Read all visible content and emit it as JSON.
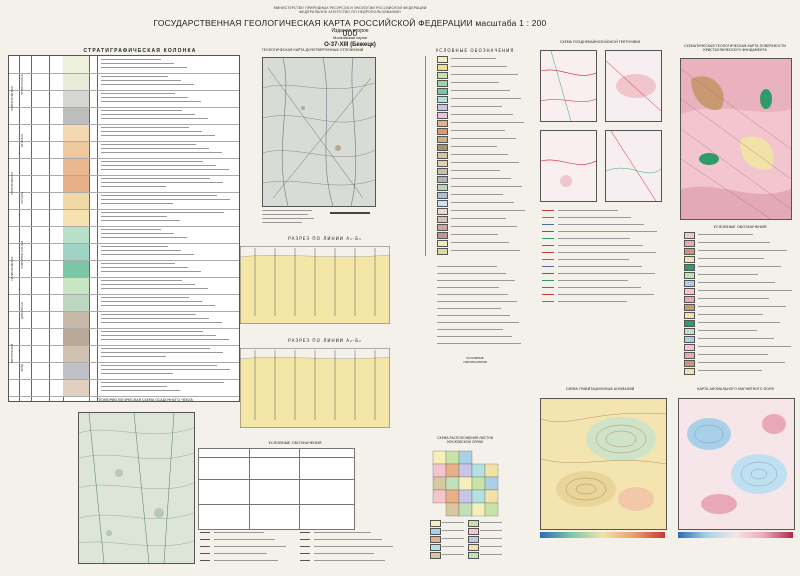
{
  "header": {
    "org_line1": "МИНИСТЕРСТВО ПРИРОДНЫХ РЕСУРСОВ И ЭКОЛОГИИ РОССИЙСКОЙ ФЕДЕРАЦИИ",
    "org_line2": "ФЕДЕРАЛЬНОЕ АГЕНТСТВО ПО НЕДРОПОЛЬЗОВАНИЮ",
    "title": "ГОСУДАРСТВЕННАЯ ГЕОЛОГИЧЕСКАЯ КАРТА РОССИЙСКОЙ ФЕДЕРАЦИИ масштаба 1 : 200 000",
    "edition": "Издание второе",
    "series": "Московская серия",
    "sheet": "О-37-XIII (Бежецк)"
  },
  "panels": {
    "stratigraphic_column": "СТРАТИГРАФИЧЕСКАЯ КОЛОНКА",
    "geologic_map_prequaternary": "ГЕОЛОГИЧЕСКАЯ КАРТА ДОЧЕТВЕРТИЧНЫХ ОТЛОЖЕНИЙ",
    "legend_main": "УСЛОВНЫЕ ОБОЗНАЧЕНИЯ",
    "section_1": "РАЗРЕЗ ПО ЛИНИИ А₁-Б₁",
    "section_2": "РАЗРЕЗ ПО ЛИНИИ А₂-Б₂",
    "tectonic_scheme": "СХЕМА ПОЗДНЕКАЙНОЗОЙСКОЙ ТЕКТОНИКИ",
    "basement_map": "СХЕМАТИЧЕСКАЯ ГЕОЛОГИЧЕСКАЯ КАРТА ПОВЕРХНОСТИ КРИСТАЛЛИЧЕСКОГО ФУНДАМЕНТА",
    "structural_scheme": "ГЕОМОРФОЛОГИЧЕСКАЯ СХЕМА ОСАДОЧНОГО ЧЕХЛА",
    "gravity_scheme": "СХЕМА ГРАВИТАЦИОННЫХ АНОМАЛИЙ",
    "magnetic_map": "КАРТА АНОМАЛЬНОГО МАГНИТНОГО ПОЛЯ",
    "sheets_scheme": "СХЕМА РАСПОЛОЖЕНИЯ ЛИСТОВ МОСКОВСКОЙ СЕРИИ",
    "legend_small_1": "УСЛОВНЫЕ ОБОЗНАЧЕНИЯ",
    "legend_small_2": "УСЛОВНЫЕ ОБОЗНАЧЕНИЯ",
    "legend_small_3": "УСЛОВНЫЕ ОБОЗНАЧЕНИЯ"
  },
  "strat_eras": [
    "КАЙНОЗОЙСКАЯ",
    "МЕЗОЗОЙСКАЯ",
    "ПАЛЕОЗОЙСКАЯ",
    "ПРОТЕРОЗОЙ"
  ],
  "strat_system_labels": [
    "ЧЕТВЕРТИЧНАЯ",
    "МЕЛОВАЯ",
    "ЮРСКАЯ",
    "КАМЕННОУГОЛЬНАЯ",
    "ДЕВОНСКАЯ",
    "ВЕНД"
  ],
  "legend_colors": [
    "#f6f0b8",
    "#f2e08a",
    "#c8e3a6",
    "#a6d4a0",
    "#7cc6a8",
    "#b5e0e0",
    "#c6c6e8",
    "#e8c8d8",
    "#e8b088",
    "#d99a6c",
    "#c9b08a",
    "#a89070",
    "#d8c8a0",
    "#e5d0a8",
    "#c7c0b0",
    "#b0b0b8",
    "#b8d8b8",
    "#a8c0d8",
    "#d0e0f0",
    "#f0d8d0",
    "#e0c0b0",
    "#c8a8a0",
    "#b89890",
    "#f0e8c0",
    "#e0d8a0"
  ],
  "section_colors": [
    "#f3e6a6",
    "#e8c89c",
    "#d6a888",
    "#bfe0cc",
    "#9fd4c4",
    "#86c8b4",
    "#c8d8e8"
  ],
  "palette": {
    "pink": "#f2c5cf",
    "rose": "#e9a8b6",
    "sand": "#f1e3a8",
    "green": "#bfe0b8",
    "teal": "#2f9a6a",
    "blue": "#a8d0e8",
    "tan": "#c99a72"
  }
}
